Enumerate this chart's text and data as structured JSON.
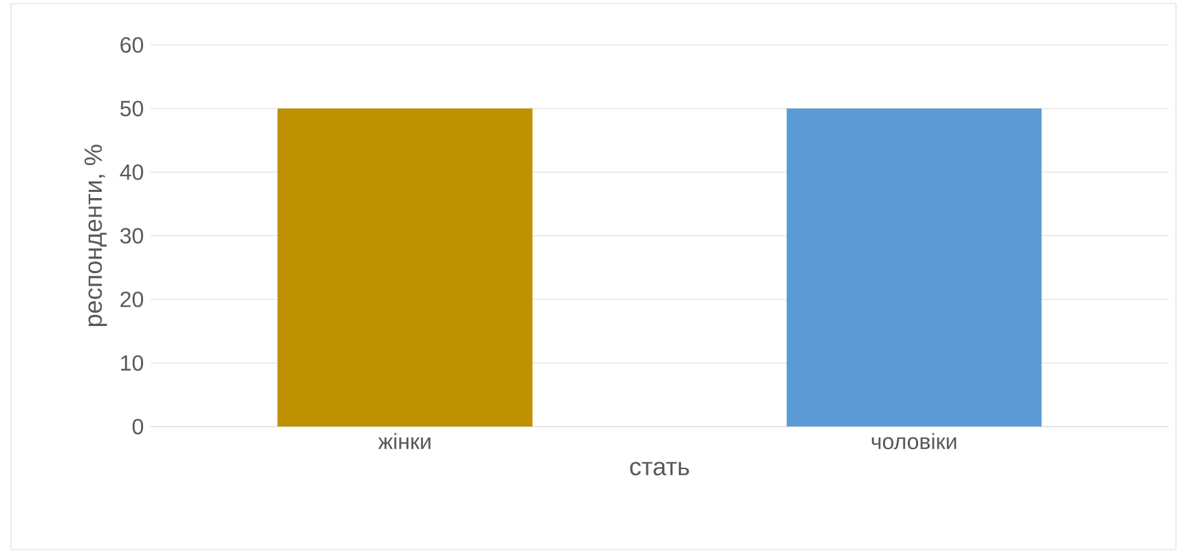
{
  "chart_data": {
    "type": "bar",
    "xlabel": "стать",
    "ylabel": "респонденти, %",
    "categories": [
      "жінки",
      "чоловіки"
    ],
    "values": [
      50,
      50
    ],
    "colors": [
      "#bf9000",
      "#5b9bd5"
    ],
    "ylim": [
      0,
      60
    ],
    "yticks": [
      0,
      10,
      20,
      30,
      40,
      50,
      60
    ],
    "grid": "y"
  }
}
